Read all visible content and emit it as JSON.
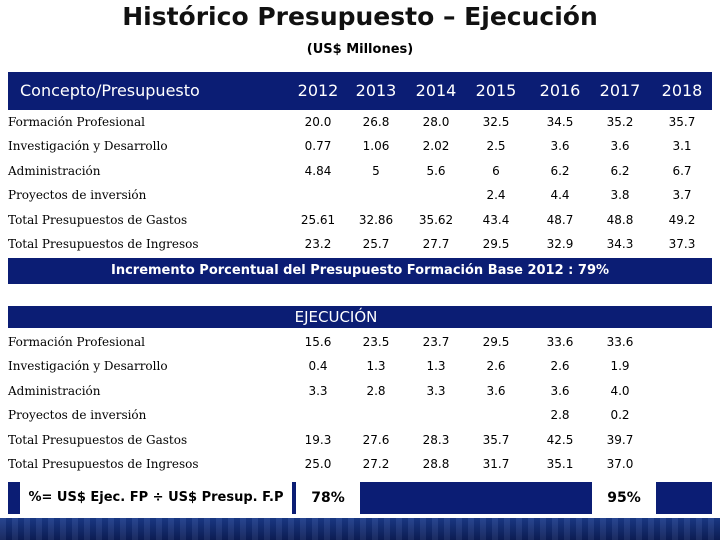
{
  "title": "Histórico Presupuesto – Ejecución",
  "subtitle": "(US$ Millones)",
  "presupuesto": {
    "header_label": "Concepto/Presupuesto",
    "years": [
      "2012",
      "2013",
      "2014",
      "2015",
      "2016",
      "2017",
      "2018"
    ],
    "rows": [
      {
        "label": "Formación Profesional",
        "values": [
          "20.0",
          "26.8",
          "28.0",
          "32.5",
          "34.5",
          "35.2",
          "35.7"
        ]
      },
      {
        "label": "Investigación y Desarrollo",
        "values": [
          "0.77",
          "1.06",
          "2.02",
          "2.5",
          "3.6",
          "3.6",
          "3.1"
        ]
      },
      {
        "label": "Administración",
        "values": [
          "4.84",
          "5",
          "5.6",
          "6",
          "6.2",
          "6.2",
          "6.7"
        ]
      },
      {
        "label": "Proyectos de inversión",
        "values": [
          "",
          "",
          "",
          "2.4",
          "4.4",
          "3.8",
          "3.7"
        ]
      },
      {
        "label": "Total Presupuestos de Gastos",
        "values": [
          "25.61",
          "32.86",
          "35.62",
          "43.4",
          "48.7",
          "48.8",
          "49.2"
        ]
      },
      {
        "label": "Total Presupuestos de Ingresos",
        "values": [
          "23.2",
          "25.7",
          "27.7",
          "29.5",
          "32.9",
          "34.3",
          "37.3"
        ]
      }
    ]
  },
  "note": "Incremento Porcentual del Presupuesto Formación Base 2012 : 79%",
  "ejecucion": {
    "header_label": "EJECUCIÓN",
    "rows": [
      {
        "label": "Formación Profesional",
        "values": [
          "15.6",
          "23.5",
          "23.7",
          "29.5",
          "33.6",
          "33.6"
        ]
      },
      {
        "label": "Investigación y Desarrollo",
        "values": [
          "0.4",
          "1.3",
          "1.3",
          "2.6",
          "2.6",
          "1.9"
        ]
      },
      {
        "label": "Administración",
        "values": [
          "3.3",
          "2.8",
          "3.3",
          "3.6",
          "3.6",
          "4.0"
        ]
      },
      {
        "label": "Proyectos de inversión",
        "values": [
          "",
          "",
          "",
          "",
          "2.8",
          "0.2"
        ]
      },
      {
        "label": "Total Presupuestos de Gastos",
        "values": [
          "19.3",
          "27.6",
          "28.3",
          "35.7",
          "42.5",
          "39.7"
        ]
      },
      {
        "label": "Total Presupuestos de Ingresos",
        "values": [
          "25.0",
          "27.2",
          "28.8",
          "31.7",
          "35.1",
          "37.0"
        ]
      }
    ]
  },
  "footer": {
    "label": "%= US$ Ejec. FP ÷ US$ Presup. F.P",
    "pct_2012": "78%",
    "pct_2017": "95%"
  },
  "colors": {
    "band": "#0b1d74",
    "background": "#ffffff"
  }
}
